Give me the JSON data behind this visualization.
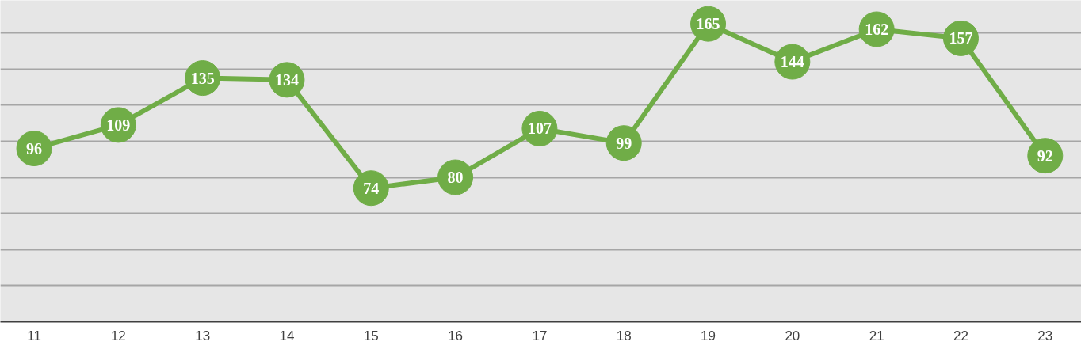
{
  "chart_data": {
    "type": "line",
    "categories": [
      "11",
      "12",
      "13",
      "14",
      "15",
      "16",
      "17",
      "18",
      "19",
      "20",
      "21",
      "22",
      "23"
    ],
    "series": [
      {
        "color": "#70ad47",
        "values": [
          96,
          109,
          135,
          134,
          74,
          80,
          107,
          99,
          165,
          144,
          162,
          157,
          92
        ]
      }
    ],
    "ylim": [
      0,
      178
    ],
    "yticks": [
      {
        "value": 0,
        "label": null
      },
      {
        "value": 20,
        "label": null
      },
      {
        "value": 40,
        "label": null
      },
      {
        "value": 60,
        "label": null
      },
      {
        "value": 80,
        "label": null
      },
      {
        "value": 100,
        "label": null
      },
      {
        "value": 120,
        "label": null
      },
      {
        "value": 140,
        "label": null
      },
      {
        "value": 160,
        "label": null
      }
    ],
    "grid": "y",
    "tick_labels": "x",
    "marker": "circle",
    "line_style": "solid",
    "data_labels": true
  }
}
